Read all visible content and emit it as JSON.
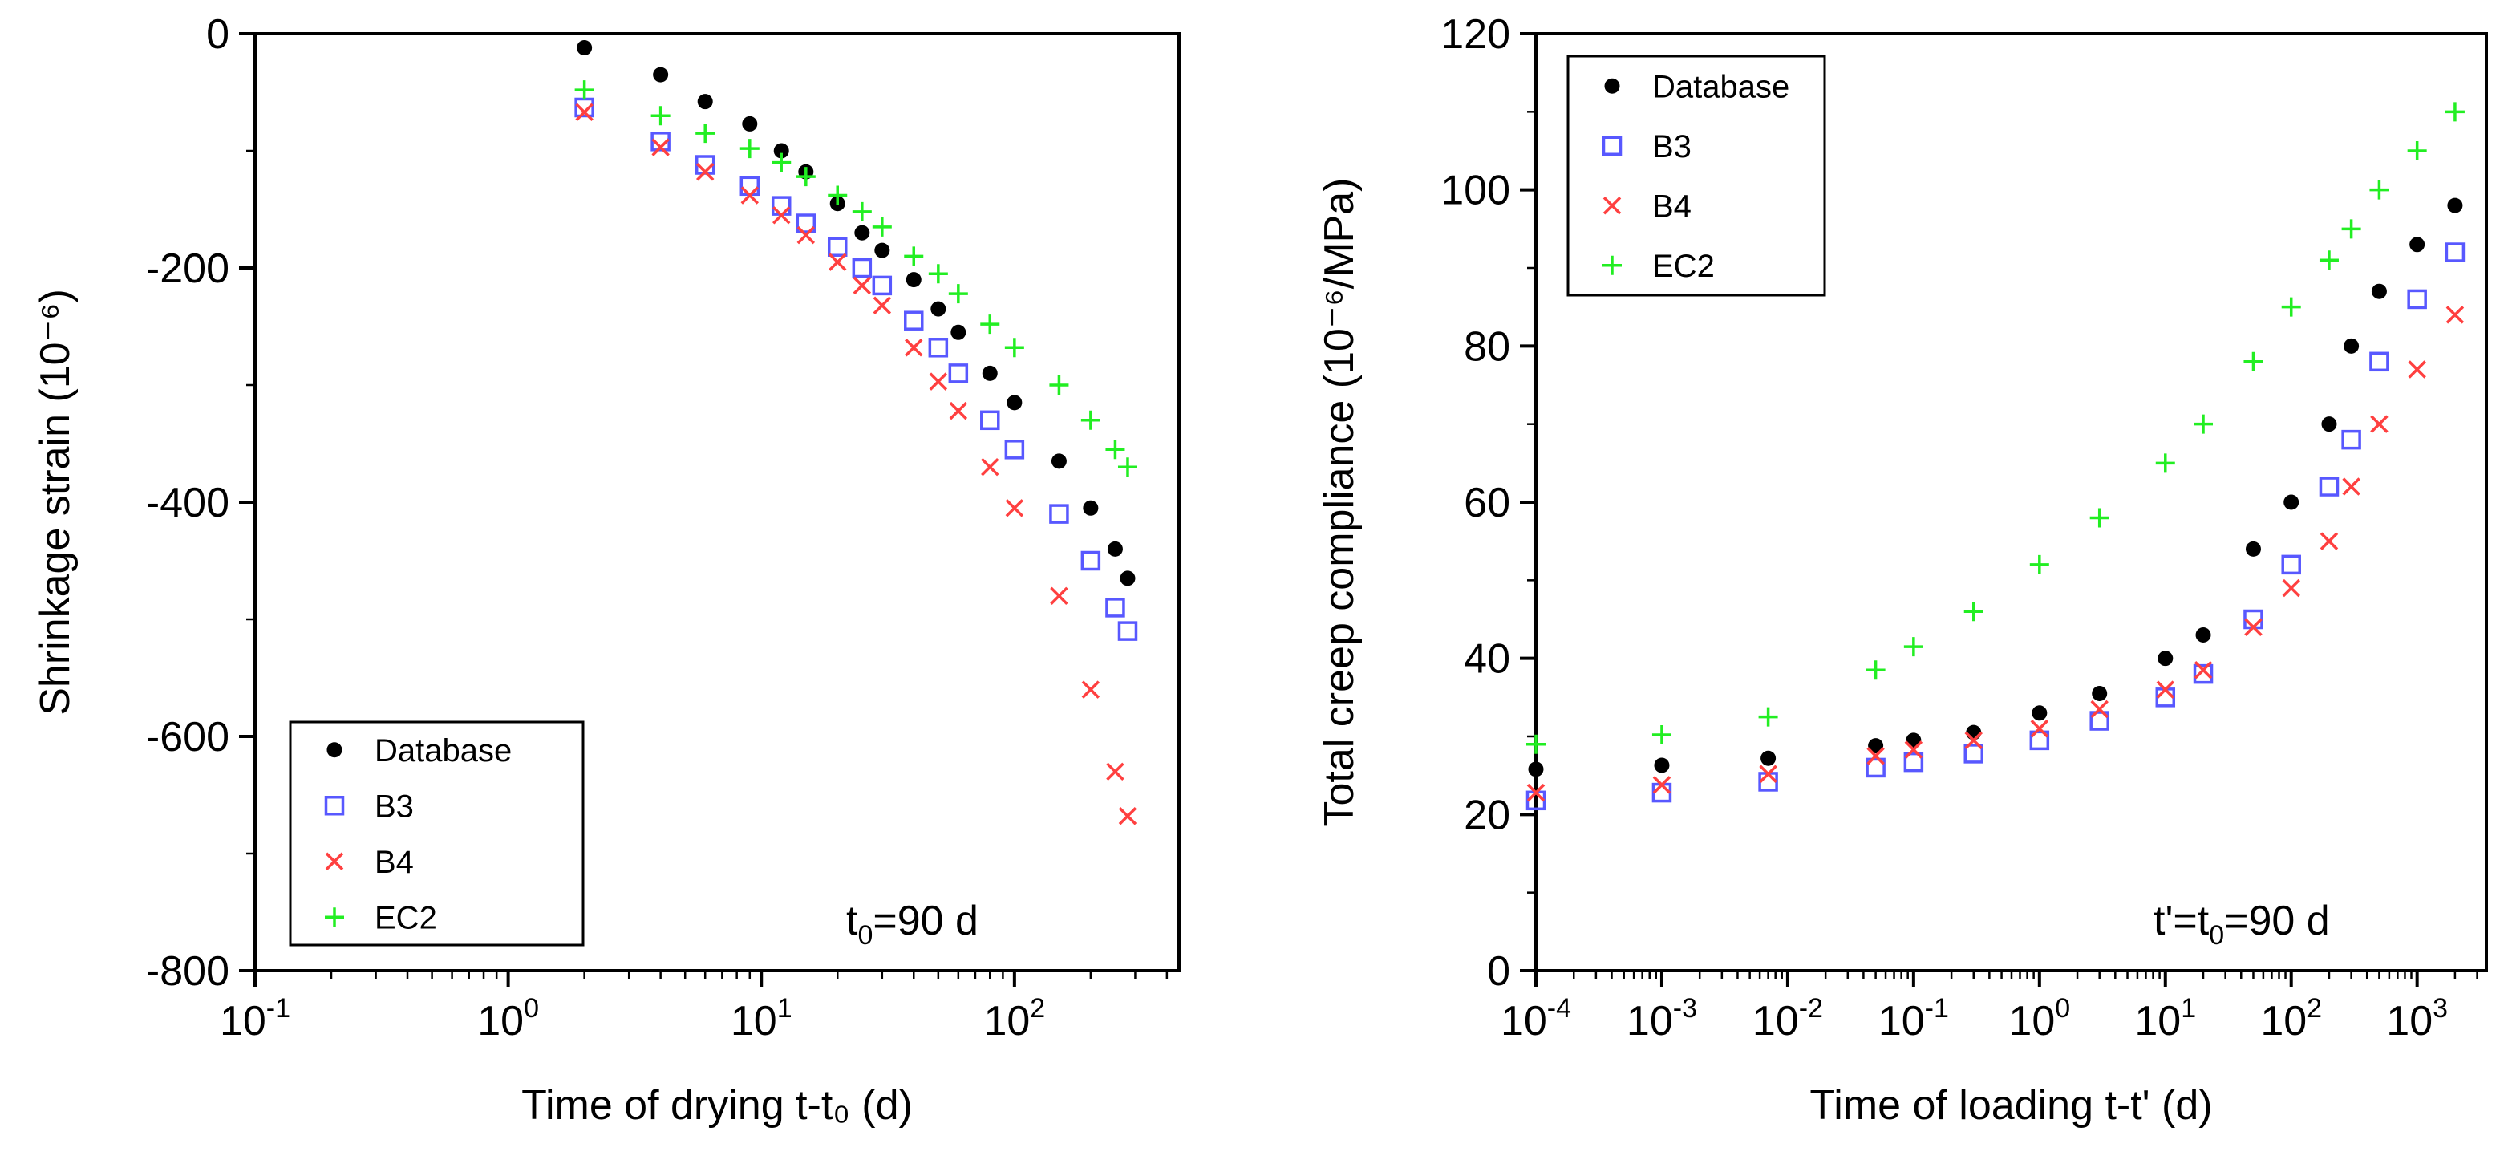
{
  "chart_data": [
    {
      "type": "scatter",
      "id": "shrinkage",
      "xscale": "log",
      "xlim_exp": [
        -1,
        2.65
      ],
      "ylim": [
        -800,
        0
      ],
      "xlabel": "Time of drying t-t₀ (d)",
      "ylabel": "Shrinkage strain (10⁻⁶)",
      "annotation": {
        "main": "t",
        "sub": "0",
        "rest": "=90 d"
      },
      "x_ticks": [
        {
          "base": "10",
          "exp": "-1",
          "value": -1
        },
        {
          "base": "10",
          "exp": "0",
          "value": 0
        },
        {
          "base": "10",
          "exp": "1",
          "value": 1
        },
        {
          "base": "10",
          "exp": "2",
          "value": 2
        }
      ],
      "y_ticks": [
        {
          "label": "0",
          "value": 0
        },
        {
          "label": "-200",
          "value": -200
        },
        {
          "label": "-400",
          "value": -400
        },
        {
          "label": "-600",
          "value": -600
        },
        {
          "label": "-800",
          "value": -800
        }
      ],
      "legend": [
        "Database",
        "B3",
        "B4",
        "EC2"
      ],
      "legend_location": "lower-left",
      "series": [
        {
          "name": "Database",
          "marker": "dot",
          "points": [
            [
              2,
              -12
            ],
            [
              4,
              -35
            ],
            [
              6,
              -58
            ],
            [
              9,
              -77
            ],
            [
              12,
              -100
            ],
            [
              15,
              -118
            ],
            [
              20,
              -145
            ],
            [
              25,
              -170
            ],
            [
              30,
              -185
            ],
            [
              40,
              -210
            ],
            [
              50,
              -235
            ],
            [
              60,
              -255
            ],
            [
              80,
              -290
            ],
            [
              100,
              -315
            ],
            [
              150,
              -365
            ],
            [
              200,
              -405
            ],
            [
              250,
              -440
            ],
            [
              280,
              -465
            ]
          ]
        },
        {
          "name": "B3",
          "marker": "square",
          "points": [
            [
              2,
              -63
            ],
            [
              4,
              -92
            ],
            [
              6,
              -112
            ],
            [
              9,
              -130
            ],
            [
              12,
              -147
            ],
            [
              15,
              -162
            ],
            [
              20,
              -182
            ],
            [
              25,
              -200
            ],
            [
              30,
              -215
            ],
            [
              40,
              -245
            ],
            [
              50,
              -268
            ],
            [
              60,
              -290
            ],
            [
              80,
              -330
            ],
            [
              100,
              -355
            ],
            [
              150,
              -410
            ],
            [
              200,
              -450
            ],
            [
              250,
              -490
            ],
            [
              280,
              -510
            ]
          ]
        },
        {
          "name": "B4",
          "marker": "x",
          "points": [
            [
              2,
              -67
            ],
            [
              4,
              -97
            ],
            [
              6,
              -118
            ],
            [
              9,
              -138
            ],
            [
              12,
              -155
            ],
            [
              15,
              -172
            ],
            [
              20,
              -195
            ],
            [
              25,
              -215
            ],
            [
              30,
              -232
            ],
            [
              40,
              -268
            ],
            [
              50,
              -297
            ],
            [
              60,
              -322
            ],
            [
              80,
              -370
            ],
            [
              100,
              -405
            ],
            [
              150,
              -480
            ],
            [
              200,
              -560
            ],
            [
              250,
              -630
            ],
            [
              280,
              -668
            ]
          ]
        },
        {
          "name": "EC2",
          "marker": "plus",
          "points": [
            [
              2,
              -48
            ],
            [
              4,
              -70
            ],
            [
              6,
              -85
            ],
            [
              9,
              -98
            ],
            [
              12,
              -110
            ],
            [
              15,
              -122
            ],
            [
              20,
              -138
            ],
            [
              25,
              -152
            ],
            [
              30,
              -165
            ],
            [
              40,
              -190
            ],
            [
              50,
              -205
            ],
            [
              60,
              -222
            ],
            [
              80,
              -248
            ],
            [
              100,
              -268
            ],
            [
              150,
              -300
            ],
            [
              200,
              -330
            ],
            [
              250,
              -355
            ],
            [
              280,
              -370
            ]
          ]
        }
      ]
    },
    {
      "type": "scatter",
      "id": "creep",
      "xscale": "log",
      "xlim_exp": [
        -4,
        3.55
      ],
      "ylim": [
        0,
        120
      ],
      "xlabel": "Time of loading t-t' (d)",
      "ylabel": "Total creep compliance (10⁻⁶/MPa)",
      "annotation": {
        "main": "t'=t",
        "sub": "0",
        "rest": "=90 d"
      },
      "x_ticks": [
        {
          "base": "10",
          "exp": "-4",
          "value": -4
        },
        {
          "base": "10",
          "exp": "-3",
          "value": -3
        },
        {
          "base": "10",
          "exp": "-2",
          "value": -2
        },
        {
          "base": "10",
          "exp": "-1",
          "value": -1
        },
        {
          "base": "10",
          "exp": "0",
          "value": 0
        },
        {
          "base": "10",
          "exp": "1",
          "value": 1
        },
        {
          "base": "10",
          "exp": "2",
          "value": 2
        },
        {
          "base": "10",
          "exp": "3",
          "value": 3
        }
      ],
      "y_ticks": [
        {
          "label": "0",
          "value": 0
        },
        {
          "label": "20",
          "value": 20
        },
        {
          "label": "40",
          "value": 40
        },
        {
          "label": "60",
          "value": 60
        },
        {
          "label": "80",
          "value": 80
        },
        {
          "label": "100",
          "value": 100
        },
        {
          "label": "120",
          "value": 120
        }
      ],
      "legend": [
        "Database",
        "B3",
        "B4",
        "EC2"
      ],
      "legend_location": "upper-left",
      "series": [
        {
          "name": "Database",
          "marker": "dot",
          "points": [
            [
              0.0001,
              25.8
            ],
            [
              0.001,
              26.3
            ],
            [
              0.007,
              27.2
            ],
            [
              0.05,
              28.8
            ],
            [
              0.1,
              29.5
            ],
            [
              0.3,
              30.5
            ],
            [
              1,
              33
            ],
            [
              3,
              35.5
            ],
            [
              10,
              40
            ],
            [
              20,
              43
            ],
            [
              50,
              54
            ],
            [
              100,
              60
            ],
            [
              200,
              70
            ],
            [
              300,
              80
            ],
            [
              500,
              87
            ],
            [
              1000,
              93
            ],
            [
              2000,
              98
            ]
          ]
        },
        {
          "name": "B3",
          "marker": "square",
          "points": [
            [
              0.0001,
              21.8
            ],
            [
              0.001,
              22.8
            ],
            [
              0.007,
              24.2
            ],
            [
              0.05,
              26
            ],
            [
              0.1,
              26.7
            ],
            [
              0.3,
              27.8
            ],
            [
              1,
              29.5
            ],
            [
              3,
              32
            ],
            [
              10,
              35
            ],
            [
              20,
              38
            ],
            [
              50,
              45
            ],
            [
              100,
              52
            ],
            [
              200,
              62
            ],
            [
              300,
              68
            ],
            [
              500,
              78
            ],
            [
              1000,
              86
            ],
            [
              2000,
              92
            ]
          ]
        },
        {
          "name": "B4",
          "marker": "x",
          "points": [
            [
              0.0001,
              22.8
            ],
            [
              0.001,
              23.8
            ],
            [
              0.007,
              25.2
            ],
            [
              0.05,
              27.5
            ],
            [
              0.1,
              28.3
            ],
            [
              0.3,
              29.5
            ],
            [
              1,
              31
            ],
            [
              3,
              33.5
            ],
            [
              10,
              36
            ],
            [
              20,
              38.5
            ],
            [
              50,
              44
            ],
            [
              100,
              49
            ],
            [
              200,
              55
            ],
            [
              300,
              62
            ],
            [
              500,
              70
            ],
            [
              1000,
              77
            ],
            [
              2000,
              84
            ]
          ]
        },
        {
          "name": "EC2",
          "marker": "plus",
          "points": [
            [
              0.0001,
              29
            ],
            [
              0.001,
              30.2
            ],
            [
              0.007,
              32.5
            ],
            [
              0.05,
              38.5
            ],
            [
              0.1,
              41.5
            ],
            [
              0.3,
              46
            ],
            [
              1,
              52
            ],
            [
              3,
              58
            ],
            [
              10,
              65
            ],
            [
              20,
              70
            ],
            [
              50,
              78
            ],
            [
              100,
              85
            ],
            [
              200,
              91
            ],
            [
              300,
              95
            ],
            [
              500,
              100
            ],
            [
              1000,
              105
            ],
            [
              2000,
              110
            ]
          ]
        }
      ]
    }
  ]
}
